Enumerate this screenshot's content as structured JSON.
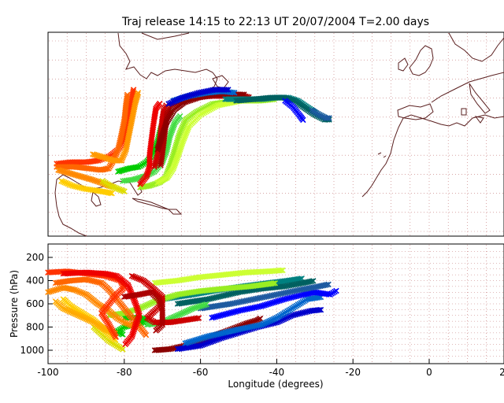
{
  "title": "Traj release 14:15 to 22:13 UT 20/07/2004    T=2.00 days",
  "xlabel": "Longitude  (degrees)",
  "ylabel": "Pressure  (hPa)",
  "chart_data": {
    "type": "scatter",
    "title": "Traj release 14:15 to 22:13 UT 20/07/2004    T=2.00 days",
    "xlabel": "Longitude  (degrees)",
    "ylabel": "Pressure  (hPa)",
    "xlim": [
      -100,
      20
    ],
    "ylim": [
      1080,
      120
    ],
    "xticks": [
      -100,
      -80,
      -60,
      -40,
      -20,
      0,
      20
    ],
    "yticks": [
      200,
      400,
      600,
      800,
      1000
    ],
    "grid": true,
    "series": [
      {
        "color": "#8b0000",
        "points": [
          [
            -72,
            1000
          ],
          [
            -68,
            990
          ],
          [
            -64,
            960
          ],
          [
            -60,
            930
          ],
          [
            -56,
            870
          ],
          [
            -52,
            820
          ],
          [
            -48,
            770
          ],
          [
            -45,
            740
          ],
          [
            -44,
            720
          ]
        ]
      },
      {
        "color": "#0000cc",
        "points": [
          [
            -66,
            990
          ],
          [
            -60,
            960
          ],
          [
            -55,
            900
          ],
          [
            -50,
            850
          ],
          [
            -45,
            800
          ],
          [
            -40,
            760
          ],
          [
            -36,
            700
          ],
          [
            -31,
            660
          ],
          [
            -28,
            650
          ]
        ]
      },
      {
        "color": "#0066cc",
        "points": [
          [
            -64,
            940
          ],
          [
            -58,
            880
          ],
          [
            -50,
            820
          ],
          [
            -44,
            780
          ],
          [
            -40,
            720
          ],
          [
            -36,
            640
          ],
          [
            -32,
            560
          ],
          [
            -28,
            540
          ]
        ]
      },
      {
        "color": "#0000ff",
        "points": [
          [
            -57,
            720
          ],
          [
            -50,
            660
          ],
          [
            -44,
            620
          ],
          [
            -38,
            560
          ],
          [
            -33,
            520
          ],
          [
            -30,
            500
          ],
          [
            -26,
            520
          ],
          [
            -24,
            480
          ]
        ]
      },
      {
        "color": "#1e5aa0",
        "points": [
          [
            -60,
            640
          ],
          [
            -52,
            600
          ],
          [
            -46,
            560
          ],
          [
            -40,
            520
          ],
          [
            -34,
            480
          ],
          [
            -29,
            450
          ],
          [
            -26,
            430
          ]
        ]
      },
      {
        "color": "#008080",
        "points": [
          [
            -70,
            560
          ],
          [
            -62,
            520
          ],
          [
            -55,
            480
          ],
          [
            -49,
            450
          ],
          [
            -42,
            420
          ],
          [
            -37,
            400
          ],
          [
            -33,
            380
          ]
        ]
      },
      {
        "color": "#006060",
        "points": [
          [
            -66,
            600
          ],
          [
            -58,
            560
          ],
          [
            -50,
            500
          ],
          [
            -44,
            470
          ],
          [
            -38,
            450
          ],
          [
            -33,
            420
          ],
          [
            -30,
            400
          ]
        ]
      },
      {
        "color": "#00cc00",
        "points": [
          [
            -80,
            720
          ],
          [
            -76,
            720
          ],
          [
            -74,
            740
          ],
          [
            -75,
            760
          ],
          [
            -80,
            800
          ],
          [
            -82,
            840
          ],
          [
            -80,
            870
          ]
        ]
      },
      {
        "color": "#44dd44",
        "points": [
          [
            -74,
            780
          ],
          [
            -70,
            760
          ],
          [
            -66,
            700
          ],
          [
            -62,
            640
          ],
          [
            -58,
            600
          ]
        ]
      },
      {
        "color": "#99ee22",
        "points": [
          [
            -84,
            700
          ],
          [
            -80,
            680
          ],
          [
            -76,
            640
          ],
          [
            -72,
            580
          ],
          [
            -66,
            520
          ],
          [
            -60,
            490
          ],
          [
            -54,
            470
          ],
          [
            -47,
            450
          ],
          [
            -40,
            420
          ]
        ]
      },
      {
        "color": "#ccff33",
        "points": [
          [
            -72,
            420
          ],
          [
            -66,
            400
          ],
          [
            -60,
            370
          ],
          [
            -54,
            350
          ],
          [
            -48,
            330
          ],
          [
            -42,
            320
          ],
          [
            -38,
            310
          ]
        ]
      },
      {
        "color": "#dddd00",
        "points": [
          [
            -88,
            800
          ],
          [
            -86,
            860
          ],
          [
            -84,
            920
          ],
          [
            -82,
            960
          ],
          [
            -80,
            1000
          ]
        ]
      },
      {
        "color": "#ffcc00",
        "points": [
          [
            -96,
            560
          ],
          [
            -94,
            620
          ],
          [
            -91,
            680
          ],
          [
            -88,
            740
          ],
          [
            -86,
            800
          ],
          [
            -84,
            860
          ],
          [
            -82,
            920
          ]
        ]
      },
      {
        "color": "#ffaa00",
        "points": [
          [
            -98,
            580
          ],
          [
            -96,
            640
          ],
          [
            -92,
            700
          ],
          [
            -88,
            760
          ],
          [
            -85,
            820
          ],
          [
            -82,
            860
          ]
        ]
      },
      {
        "color": "#ff8800",
        "points": [
          [
            -100,
            500
          ],
          [
            -96,
            460
          ],
          [
            -93,
            480
          ],
          [
            -90,
            520
          ],
          [
            -87,
            600
          ],
          [
            -84,
            660
          ],
          [
            -82,
            720
          ],
          [
            -80,
            760
          ],
          [
            -77,
            800
          ]
        ]
      },
      {
        "color": "#ff6600",
        "points": [
          [
            -98,
            420
          ],
          [
            -94,
            400
          ],
          [
            -90,
            390
          ],
          [
            -86,
            420
          ],
          [
            -84,
            480
          ],
          [
            -82,
            560
          ],
          [
            -80,
            640
          ],
          [
            -78,
            720
          ],
          [
            -76,
            800
          ],
          [
            -74,
            880
          ]
        ]
      },
      {
        "color": "#ff3300",
        "points": [
          [
            -100,
            330
          ],
          [
            -95,
            320
          ],
          [
            -90,
            340
          ],
          [
            -85,
            360
          ],
          [
            -81,
            400
          ],
          [
            -80,
            460
          ],
          [
            -82,
            520
          ],
          [
            -84,
            600
          ],
          [
            -86,
            680
          ],
          [
            -84,
            780
          ],
          [
            -82,
            900
          ]
        ]
      },
      {
        "color": "#ee0000",
        "points": [
          [
            -96,
            340
          ],
          [
            -90,
            330
          ],
          [
            -85,
            340
          ],
          [
            -82,
            360
          ],
          [
            -79,
            440
          ],
          [
            -78,
            520
          ],
          [
            -77,
            600
          ],
          [
            -76,
            700
          ],
          [
            -77,
            780
          ],
          [
            -78,
            880
          ],
          [
            -80,
            960
          ]
        ]
      },
      {
        "color": "#cc0000",
        "points": [
          [
            -78,
            360
          ],
          [
            -75,
            400
          ],
          [
            -72,
            480
          ],
          [
            -70,
            540
          ],
          [
            -70,
            600
          ],
          [
            -72,
            660
          ],
          [
            -74,
            720
          ],
          [
            -72,
            760
          ],
          [
            -68,
            760
          ],
          [
            -64,
            740
          ],
          [
            -60,
            720
          ]
        ]
      },
      {
        "color": "#aa0000",
        "points": [
          [
            -80,
            540
          ],
          [
            -76,
            520
          ],
          [
            -73,
            500
          ],
          [
            -71,
            560
          ],
          [
            -70,
            640
          ],
          [
            -70,
            720
          ],
          [
            -70,
            780
          ],
          [
            -72,
            840
          ]
        ]
      }
    ]
  }
}
